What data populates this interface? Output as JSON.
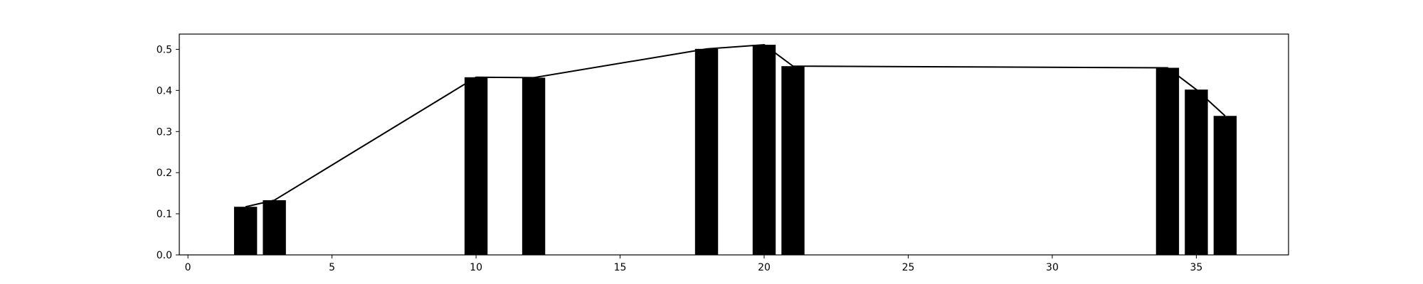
{
  "chart_data": {
    "type": "bar",
    "title": "",
    "xlabel": "",
    "ylabel": "",
    "grid": false,
    "legend": "none",
    "bar_color": "#000000",
    "line_color": "#000000",
    "xlim": [
      -0.3,
      38.2
    ],
    "ylim": [
      0,
      0.537
    ],
    "xticks": [
      0,
      5,
      10,
      15,
      20,
      25,
      30,
      35
    ],
    "yticks": [
      0.0,
      0.1,
      0.2,
      0.3,
      0.4,
      0.5
    ],
    "xtick_labels": [
      "0",
      "5",
      "10",
      "15",
      "20",
      "25",
      "30",
      "35"
    ],
    "ytick_labels": [
      "0.0",
      "0.1",
      "0.2",
      "0.3",
      "0.4",
      "0.5"
    ],
    "bar_width": 0.8,
    "series": [
      {
        "type": "bar",
        "x": [
          2,
          3,
          10,
          12,
          18,
          20,
          21,
          34,
          35,
          36
        ],
        "values": [
          0.117,
          0.133,
          0.432,
          0.431,
          0.501,
          0.511,
          0.459,
          0.455,
          0.402,
          0.338
        ]
      },
      {
        "type": "line",
        "x": [
          2,
          3,
          10,
          12,
          18,
          20,
          21,
          34,
          35,
          36
        ],
        "values": [
          0.117,
          0.133,
          0.432,
          0.431,
          0.501,
          0.511,
          0.459,
          0.455,
          0.402,
          0.338
        ]
      }
    ]
  }
}
